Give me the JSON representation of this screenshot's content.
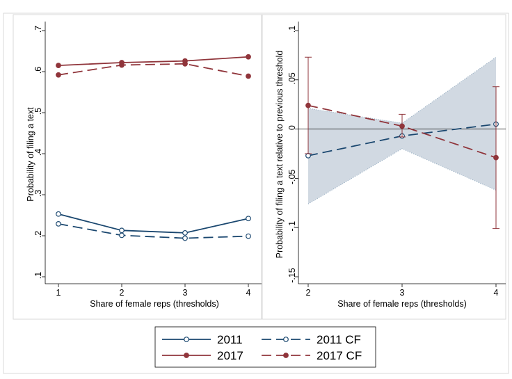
{
  "chart_data": [
    {
      "type": "line",
      "xlabel": "Share of female reps (thresholds)",
      "ylabel": "Probability of filing a text",
      "x": [
        1,
        2,
        3,
        4
      ],
      "xlim": [
        1,
        4
      ],
      "ylim": [
        0.1,
        0.7
      ],
      "xticks": [
        "1",
        "2",
        "3",
        "4"
      ],
      "yticks": [
        ".1",
        ".2",
        ".3",
        ".4",
        ".5",
        ".6",
        ".7"
      ],
      "ytick_values": [
        0.1,
        0.2,
        0.3,
        0.4,
        0.5,
        0.6,
        0.7
      ],
      "series": [
        {
          "name": "2011",
          "values": [
            0.253,
            0.213,
            0.207,
            0.242
          ],
          "color": "#1a476f",
          "dashed": false,
          "filled": false
        },
        {
          "name": "2011 CF",
          "values": [
            0.229,
            0.201,
            0.194,
            0.199
          ],
          "color": "#1a476f",
          "dashed": true,
          "filled": false
        },
        {
          "name": "2017",
          "values": [
            0.615,
            0.622,
            0.626,
            0.636
          ],
          "color": "#90353b",
          "dashed": false,
          "filled": true
        },
        {
          "name": "2017 CF",
          "values": [
            0.592,
            0.616,
            0.619,
            0.589
          ],
          "color": "#90353b",
          "dashed": true,
          "filled": true
        }
      ]
    },
    {
      "type": "line",
      "xlabel": "Share of female reps (thresholds)",
      "ylabel": "Probability of filing a text relative to previous threshold",
      "x": [
        2,
        3,
        4
      ],
      "xlim": [
        2,
        4
      ],
      "ylim": [
        -0.15,
        0.1
      ],
      "xticks": [
        "2",
        "3",
        "4"
      ],
      "yticks": [
        "-.15",
        "-.1",
        "-.05",
        "0",
        ".05",
        ".1"
      ],
      "ytick_values": [
        -0.15,
        -0.1,
        -0.05,
        0,
        0.05,
        0.1
      ],
      "reference_line_y": 0,
      "band": {
        "lower": [
          -0.076,
          -0.02,
          -0.062
        ],
        "upper": [
          0.021,
          0.006,
          0.073
        ],
        "color": "#d1d9e2"
      },
      "series": [
        {
          "name": "2011 CF",
          "values": [
            -0.027,
            -0.007,
            0.005
          ],
          "color": "#1a476f",
          "dashed": true,
          "filled": false
        },
        {
          "name": "2017 CF",
          "values": [
            0.024,
            0.003,
            -0.029
          ],
          "color": "#90353b",
          "dashed": true,
          "filled": true,
          "ci_lower": [
            -0.025,
            -0.008,
            -0.101
          ],
          "ci_upper": [
            0.073,
            0.015,
            0.043
          ]
        }
      ]
    }
  ],
  "legend": {
    "items": [
      {
        "label": "2011",
        "color": "#1a476f",
        "dashed": false,
        "filled": false
      },
      {
        "label": "2011 CF",
        "color": "#1a476f",
        "dashed": true,
        "filled": false
      },
      {
        "label": "2017",
        "color": "#90353b",
        "dashed": false,
        "filled": true
      },
      {
        "label": "2017 CF",
        "color": "#90353b",
        "dashed": true,
        "filled": true
      }
    ]
  }
}
